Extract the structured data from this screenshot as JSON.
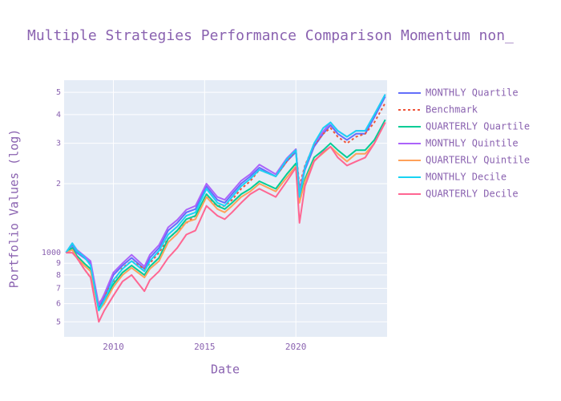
{
  "chart_data": {
    "type": "line",
    "title": "Multiple Strategies Performance Comparison Momentum non_",
    "x_label": "Date",
    "y_label": "Portfolio Values (log)",
    "log_y": true,
    "grid": true,
    "legend": "right",
    "xlim": [
      2007.3,
      2025.0
    ],
    "xticks": [
      2010,
      2015,
      2020
    ],
    "ylim": [
      430,
      5650
    ],
    "yticks": [
      {
        "value": 500,
        "label": "5"
      },
      {
        "value": 600,
        "label": "6"
      },
      {
        "value": 700,
        "label": "7"
      },
      {
        "value": 800,
        "label": "8"
      },
      {
        "value": 900,
        "label": "9"
      },
      1000,
      {
        "value": 2000,
        "label": "2"
      },
      {
        "value": 3000,
        "label": "3"
      },
      {
        "value": 4000,
        "label": "4"
      },
      {
        "value": 5000,
        "label": "5"
      }
    ],
    "x": [
      2007.4,
      2007.75,
      2008.0,
      2008.4,
      2008.75,
      2009.2,
      2009.5,
      2010.0,
      2010.5,
      2011.0,
      2011.7,
      2012.0,
      2012.5,
      2013.0,
      2013.5,
      2014.0,
      2014.5,
      2015.1,
      2015.7,
      2016.1,
      2016.5,
      2017.0,
      2017.5,
      2018.0,
      2018.9,
      2019.5,
      2020.0,
      2020.2,
      2020.5,
      2021.0,
      2021.5,
      2021.9,
      2022.3,
      2022.8,
      2023.3,
      2023.8,
      2024.3,
      2024.9
    ],
    "series": [
      {
        "name": "MONTHLY Quartile",
        "color": "#636efa",
        "dash": "solid",
        "values": [
          1000,
          1080,
          1000,
          950,
          900,
          580,
          640,
          800,
          880,
          950,
          850,
          950,
          1050,
          1250,
          1350,
          1500,
          1550,
          1950,
          1700,
          1650,
          1800,
          2000,
          2150,
          2350,
          2150,
          2500,
          2750,
          1800,
          2300,
          2900,
          3300,
          3600,
          3300,
          3100,
          3300,
          3300,
          3900,
          4800
        ]
      },
      {
        "name": "Benchmark",
        "color": "#ef553b",
        "dash": "dot",
        "values": [
          1000,
          1050,
          950,
          850,
          780,
          600,
          650,
          750,
          860,
          920,
          850,
          900,
          1000,
          1150,
          1250,
          1350,
          1450,
          1750,
          1600,
          1600,
          1700,
          1900,
          2050,
          2300,
          2150,
          2500,
          2800,
          1950,
          2400,
          2950,
          3300,
          3500,
          3200,
          3000,
          3200,
          3300,
          3700,
          4500
        ]
      },
      {
        "name": "QUARTERLY Quartile",
        "color": "#00cc96",
        "dash": "solid",
        "values": [
          1000,
          1050,
          970,
          900,
          850,
          570,
          620,
          730,
          820,
          880,
          800,
          870,
          950,
          1150,
          1250,
          1400,
          1450,
          1800,
          1600,
          1550,
          1650,
          1800,
          1900,
          2050,
          1900,
          2200,
          2450,
          1700,
          2100,
          2600,
          2800,
          3000,
          2800,
          2600,
          2800,
          2800,
          3100,
          3800
        ]
      },
      {
        "name": "MONTHLY Quintile",
        "color": "#ab63fa",
        "dash": "solid",
        "values": [
          1000,
          1100,
          1030,
          970,
          920,
          590,
          660,
          820,
          900,
          980,
          870,
          980,
          1080,
          1290,
          1390,
          1540,
          1600,
          2000,
          1750,
          1700,
          1850,
          2060,
          2200,
          2420,
          2200,
          2580,
          2830,
          1850,
          2370,
          2980,
          3380,
          3700,
          3400,
          3200,
          3400,
          3400,
          4000,
          4900
        ]
      },
      {
        "name": "QUARTERLY Quintile",
        "color": "#ffa15a",
        "dash": "solid",
        "values": [
          1000,
          1030,
          950,
          880,
          830,
          560,
          600,
          710,
          800,
          860,
          780,
          850,
          920,
          1110,
          1210,
          1360,
          1400,
          1750,
          1550,
          1500,
          1600,
          1750,
          1850,
          2000,
          1850,
          2130,
          2380,
          1650,
          2050,
          2520,
          2720,
          2900,
          2700,
          2500,
          2700,
          2700,
          3000,
          3700
        ]
      },
      {
        "name": "MONTHLY Decile",
        "color": "#19d3f3",
        "dash": "solid",
        "values": [
          1000,
          1100,
          1020,
          960,
          880,
          560,
          620,
          760,
          850,
          920,
          830,
          920,
          1020,
          1200,
          1300,
          1450,
          1500,
          1900,
          1650,
          1600,
          1750,
          1950,
          2100,
          2300,
          2150,
          2550,
          2800,
          1750,
          2350,
          3000,
          3500,
          3700,
          3400,
          3200,
          3400,
          3400,
          4000,
          4900
        ]
      },
      {
        "name": "QUARTERLY Decile",
        "color": "#ff6692",
        "dash": "solid",
        "values": [
          1000,
          1000,
          950,
          850,
          780,
          500,
          560,
          650,
          750,
          800,
          680,
          760,
          830,
          950,
          1050,
          1200,
          1250,
          1600,
          1450,
          1400,
          1500,
          1650,
          1800,
          1900,
          1750,
          2050,
          2350,
          1350,
          1950,
          2500,
          2750,
          2900,
          2600,
          2400,
          2500,
          2600,
          3000,
          3700
        ]
      }
    ]
  }
}
